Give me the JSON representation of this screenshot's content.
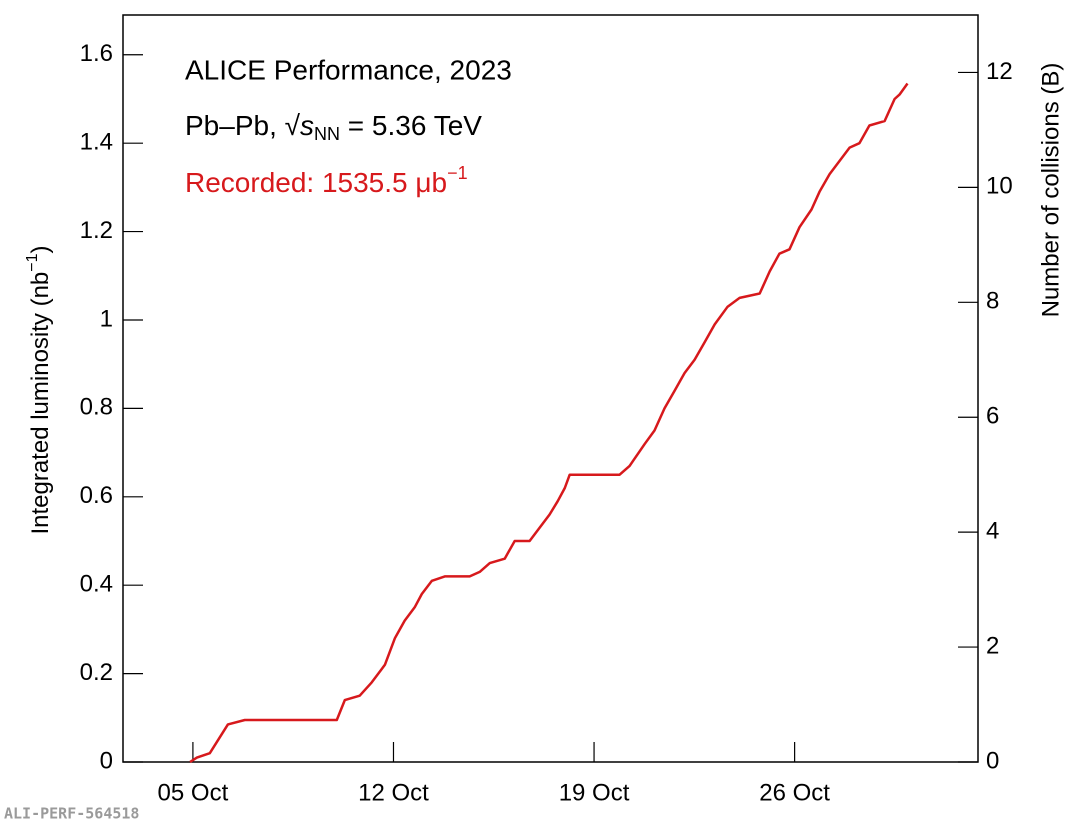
{
  "chart_data": {
    "type": "line",
    "title": "ALICE Performance, 2023",
    "energy_label": {
      "prefix": "Pb–Pb, ",
      "sqrt": "√",
      "symbol": "s",
      "subscript": "NN",
      "suffix": " = 5.36 TeV"
    },
    "annotation": {
      "text": "Recorded: 1535.5 μb",
      "superscript": "−1",
      "color": "#d7191c"
    },
    "y_label": {
      "text": "Integrated luminosity (nb",
      "superscript": "−1",
      "suffix": ")"
    },
    "y2_label": "Number of collisions (B)",
    "watermark": "ALI-PERF-564518",
    "color": "#d7191c",
    "x": [
      4.9,
      5.14,
      5.59,
      6.22,
      6.81,
      10.02,
      10.3,
      10.82,
      11.24,
      11.7,
      12.05,
      12.39,
      12.74,
      12.99,
      13.34,
      13.79,
      14.66,
      15.01,
      15.36,
      15.88,
      16.23,
      16.75,
      17.1,
      17.45,
      17.73,
      17.98,
      18.15,
      19.89,
      20.24,
      20.77,
      21.11,
      21.46,
      21.81,
      22.16,
      22.51,
      22.86,
      23.21,
      23.66,
      24.08,
      24.78,
      25.13,
      25.47,
      25.82,
      26.17,
      26.59,
      26.87,
      27.22,
      27.57,
      27.92,
      28.26,
      28.61,
      29.14,
      29.49,
      29.66,
      29.94
    ],
    "values": [
      0,
      0.01,
      0.02,
      0.085,
      0.095,
      0.095,
      0.14,
      0.15,
      0.18,
      0.22,
      0.28,
      0.32,
      0.35,
      0.38,
      0.41,
      0.42,
      0.42,
      0.43,
      0.45,
      0.46,
      0.5,
      0.5,
      0.53,
      0.56,
      0.59,
      0.62,
      0.65,
      0.65,
      0.67,
      0.72,
      0.75,
      0.8,
      0.84,
      0.88,
      0.91,
      0.95,
      0.99,
      1.03,
      1.05,
      1.06,
      1.11,
      1.15,
      1.16,
      1.21,
      1.25,
      1.29,
      1.33,
      1.36,
      1.39,
      1.4,
      1.44,
      1.45,
      1.5,
      1.51,
      1.535
    ],
    "xlim": [
      2.56,
      32.4
    ],
    "xticks": [
      {
        "value": 5,
        "label": "05 Oct"
      },
      {
        "value": 12,
        "label": "12 Oct"
      },
      {
        "value": 19,
        "label": "19 Oct"
      },
      {
        "value": 26,
        "label": "26 Oct"
      }
    ],
    "ylim": [
      0,
      1.69
    ],
    "yticks": [
      0,
      0.2,
      0.4,
      0.6,
      0.8,
      1,
      1.2,
      1.4,
      1.6
    ],
    "y2lim": [
      0,
      13
    ],
    "y2ticks": [
      0,
      2,
      4,
      6,
      8,
      10,
      12
    ]
  }
}
